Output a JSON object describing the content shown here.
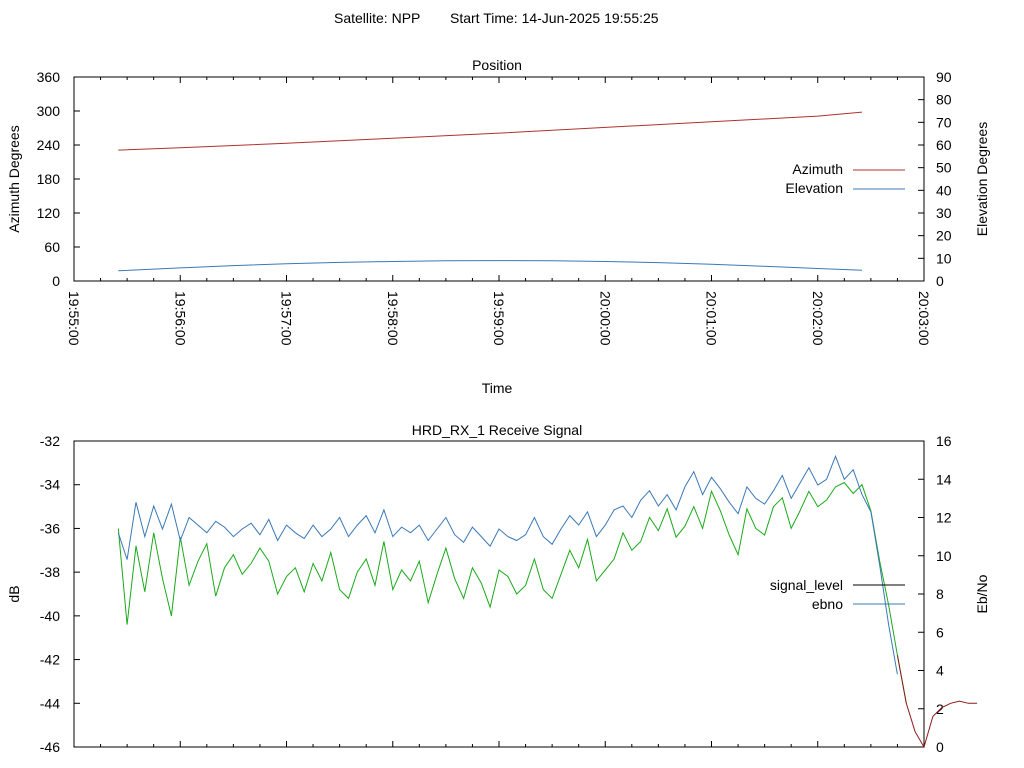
{
  "header": {
    "satellite_label": "Satellite: NPP",
    "start_time_label": "Start Time: 14-Jun-2025 19:55:25"
  },
  "colors": {
    "azimuth": "#b03030",
    "elevation": "#3a78b8",
    "signal_level": "#000000",
    "ebno": "#3a78b8",
    "signal_green": "#1aaa1a",
    "signal_red_tail": "#8b1a1a"
  },
  "chart_data": [
    {
      "type": "line",
      "title": "Position",
      "xlabel": "Time",
      "ylabel": "Azimuth Degrees",
      "y2label": "Elevation Degrees",
      "xlim": [
        "19:55:00",
        "20:03:00"
      ],
      "ylim": [
        0,
        360
      ],
      "y2lim": [
        0,
        90
      ],
      "x_ticks": [
        "19:55:00",
        "19:56:00",
        "19:57:00",
        "19:58:00",
        "19:59:00",
        "20:00:00",
        "20:01:00",
        "20:02:00",
        "20:03:00"
      ],
      "y_ticks": [
        "0",
        "60",
        "120",
        "180",
        "240",
        "300",
        "360"
      ],
      "y2_ticks": [
        "0",
        "10",
        "20",
        "30",
        "40",
        "50",
        "60",
        "70",
        "80",
        "90"
      ],
      "legend_position": "right",
      "grid": false,
      "series": [
        {
          "name": "Azimuth",
          "axis": "y",
          "x": [
            "19:55:25",
            "19:56:00",
            "19:57:00",
            "19:58:00",
            "19:59:00",
            "20:00:00",
            "20:01:00",
            "20:02:00",
            "20:02:25"
          ],
          "values": [
            231,
            235,
            243,
            252,
            261,
            271,
            281,
            291,
            298
          ]
        },
        {
          "name": "Elevation",
          "axis": "y2",
          "x": [
            "19:55:25",
            "19:56:00",
            "19:56:30",
            "19:57:00",
            "19:57:30",
            "19:58:00",
            "19:58:30",
            "19:59:00",
            "19:59:30",
            "20:00:00",
            "20:00:30",
            "20:01:00",
            "20:01:30",
            "20:02:00",
            "20:02:25"
          ],
          "values": [
            4.5,
            5.8,
            6.8,
            7.6,
            8.2,
            8.6,
            8.9,
            9.0,
            8.9,
            8.6,
            8.1,
            7.4,
            6.5,
            5.5,
            4.7
          ]
        }
      ]
    },
    {
      "type": "line",
      "title": "HRD_RX_1 Receive Signal",
      "ylabel": "dB",
      "y2label": "Eb/No",
      "xlim": [
        "19:55:00",
        "20:03:00"
      ],
      "ylim": [
        -46,
        -32
      ],
      "y2lim": [
        0,
        16
      ],
      "y_ticks": [
        "-46",
        "-44",
        "-42",
        "-40",
        "-38",
        "-36",
        "-34",
        "-32"
      ],
      "y2_ticks": [
        "0",
        "2",
        "4",
        "6",
        "8",
        "10",
        "12",
        "14",
        "16"
      ],
      "legend_position": "right",
      "grid": false,
      "series": [
        {
          "name": "signal_level",
          "axis": "y",
          "x_seconds_from_start": [
            0,
            5,
            10,
            15,
            20,
            25,
            30,
            35,
            40,
            45,
            50,
            55,
            60,
            65,
            70,
            75,
            80,
            85,
            90,
            95,
            100,
            105,
            110,
            115,
            120,
            125,
            130,
            135,
            140,
            145,
            150,
            155,
            160,
            165,
            170,
            175,
            180,
            185,
            190,
            195,
            200,
            205,
            210,
            215,
            220,
            225,
            230,
            235,
            240,
            245,
            250,
            255,
            260,
            265,
            270,
            275,
            280,
            285,
            290,
            295,
            300,
            305,
            310,
            315,
            320,
            325,
            330,
            335,
            340,
            345,
            350,
            355,
            360,
            365,
            370,
            375,
            380,
            385,
            390,
            395,
            400,
            405,
            410,
            415,
            420,
            425,
            430,
            435,
            440,
            445,
            450,
            455,
            460,
            465,
            470,
            475,
            480,
            485
          ],
          "values": [
            -36.0,
            -40.4,
            -36.8,
            -38.9,
            -36.2,
            -38.3,
            -40.0,
            -36.4,
            -38.6,
            -37.5,
            -36.7,
            -39.1,
            -37.8,
            -37.2,
            -38.1,
            -37.6,
            -36.9,
            -37.5,
            -39.0,
            -38.2,
            -37.8,
            -38.9,
            -37.6,
            -38.4,
            -37.1,
            -38.8,
            -39.2,
            -38.0,
            -37.4,
            -38.6,
            -36.6,
            -38.8,
            -37.9,
            -38.4,
            -37.5,
            -39.4,
            -38.1,
            -36.9,
            -38.3,
            -39.2,
            -37.8,
            -38.5,
            -39.6,
            -37.9,
            -38.2,
            -39.0,
            -38.6,
            -37.4,
            -38.8,
            -39.2,
            -38.1,
            -37.0,
            -37.8,
            -36.5,
            -38.4,
            -37.9,
            -37.4,
            -36.2,
            -37.0,
            -36.6,
            -35.5,
            -36.1,
            -35.1,
            -36.4,
            -35.9,
            -35.0,
            -36.0,
            -34.3,
            -35.2,
            -36.3,
            -37.2,
            -35.1,
            -36.0,
            -36.3,
            -35.0,
            -34.6,
            -36.0,
            -35.2,
            -34.3,
            -35.0,
            -34.7,
            -34.1,
            -33.9,
            -34.4,
            -34.0,
            -35.2,
            -37.5,
            -39.5,
            -41.8,
            -44.0,
            -45.3,
            -46.0,
            -44.6,
            -44.2,
            -44.0,
            -43.9,
            -44.0,
            -44.0
          ],
          "note_hidden": false
        },
        {
          "name": "ebno",
          "axis": "y2",
          "x_seconds_from_start": [
            0,
            5,
            10,
            15,
            20,
            25,
            30,
            35,
            40,
            45,
            50,
            55,
            60,
            65,
            70,
            75,
            80,
            85,
            90,
            95,
            100,
            105,
            110,
            115,
            120,
            125,
            130,
            135,
            140,
            145,
            150,
            155,
            160,
            165,
            170,
            175,
            180,
            185,
            190,
            195,
            200,
            205,
            210,
            215,
            220,
            225,
            230,
            235,
            240,
            245,
            250,
            255,
            260,
            265,
            270,
            275,
            280,
            285,
            290,
            295,
            300,
            305,
            310,
            315,
            320,
            325,
            330,
            335,
            340,
            345,
            350,
            355,
            360,
            365,
            370,
            375,
            380,
            385,
            390,
            395,
            400,
            405,
            410,
            415,
            420,
            425,
            430,
            435,
            440
          ],
          "values": [
            11.2,
            9.8,
            12.8,
            11.0,
            12.6,
            11.4,
            12.7,
            10.8,
            12.0,
            11.6,
            11.2,
            11.8,
            11.5,
            11.0,
            11.4,
            11.7,
            11.1,
            11.9,
            10.8,
            11.6,
            11.2,
            10.9,
            11.6,
            11.0,
            11.4,
            12.0,
            11.0,
            11.6,
            12.1,
            11.2,
            12.4,
            11.0,
            11.5,
            11.2,
            11.6,
            10.8,
            11.4,
            12.0,
            11.1,
            10.7,
            11.5,
            11.0,
            10.5,
            11.4,
            11.0,
            10.8,
            11.1,
            12.0,
            11.0,
            10.6,
            11.4,
            12.1,
            11.6,
            12.3,
            11.0,
            11.6,
            12.4,
            12.6,
            12.0,
            12.9,
            13.4,
            12.6,
            13.2,
            12.4,
            13.6,
            14.4,
            13.2,
            14.1,
            13.5,
            12.8,
            12.2,
            13.6,
            13.0,
            12.7,
            13.4,
            14.2,
            13.0,
            13.8,
            14.6,
            13.7,
            14.0,
            15.2,
            14.0,
            14.5,
            13.2,
            12.3,
            9.5,
            6.4,
            3.8
          ]
        }
      ]
    }
  ],
  "legend": {
    "position_chart": [
      "Azimuth",
      "Elevation"
    ],
    "signal_chart": [
      "signal_level",
      "ebno"
    ]
  }
}
